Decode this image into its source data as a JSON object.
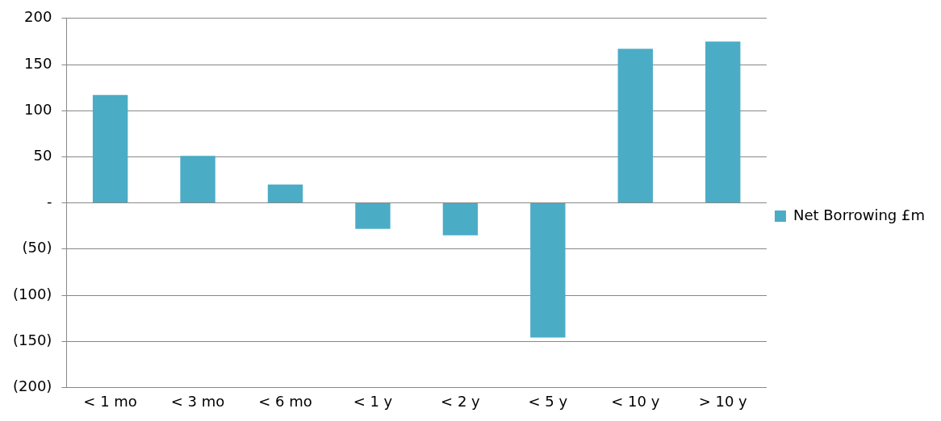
{
  "chart_data": {
    "type": "bar",
    "categories": [
      "< 1 mo",
      "< 3 mo",
      "< 6 mo",
      "< 1 y",
      "< 2 y",
      "< 5 y",
      "< 10 y",
      "> 10 y"
    ],
    "series": [
      {
        "name": "Net Borrowing £m",
        "color": "#4bacc6",
        "values": [
          117,
          51,
          20,
          -28,
          -35,
          -146,
          167,
          175
        ]
      }
    ],
    "ylim": [
      -200,
      200
    ],
    "yticks": [
      200,
      150,
      100,
      50,
      {
        "value": 0,
        "label": "-"
      },
      {
        "value": -50,
        "label": "(50)"
      },
      {
        "value": -100,
        "label": "(100)"
      },
      {
        "value": -150,
        "label": "(150)"
      },
      {
        "value": -200,
        "label": "(200)"
      }
    ],
    "grid": "y",
    "legend": "right"
  }
}
